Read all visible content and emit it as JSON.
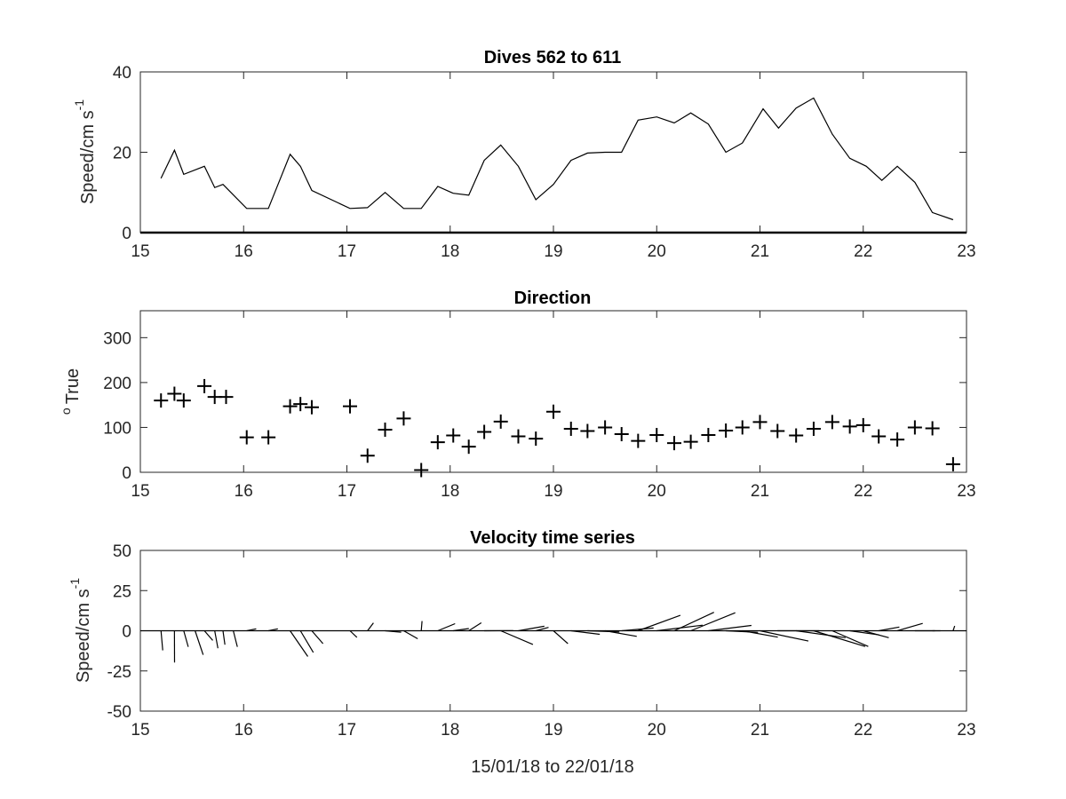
{
  "colors": {
    "line": "#000000",
    "axis": "#262626",
    "background": "#ffffff"
  },
  "chart_data": [
    {
      "type": "line",
      "title": "Dives 562 to 611",
      "ylabel": "Speed/cm s",
      "ylabel_superscript": "-1",
      "xlim": [
        15,
        23
      ],
      "ylim": [
        0,
        40
      ],
      "xticks": [
        "15",
        "16",
        "17",
        "18",
        "19",
        "20",
        "21",
        "22",
        "23"
      ],
      "yticks": [
        "0",
        "20",
        "40"
      ],
      "grid": false,
      "x": [
        15.2,
        15.33,
        15.42,
        15.62,
        15.72,
        15.8,
        16.03,
        16.24,
        16.45,
        16.55,
        16.66,
        17.03,
        17.2,
        17.37,
        17.55,
        17.72,
        17.88,
        18.03,
        18.18,
        18.33,
        18.49,
        18.66,
        18.83,
        19.0,
        19.17,
        19.33,
        19.5,
        19.66,
        19.82,
        20.0,
        20.17,
        20.33,
        20.5,
        20.67,
        20.83,
        21.03,
        21.18,
        21.35,
        21.52,
        21.7,
        21.87,
        22.03,
        22.18,
        22.33,
        22.5,
        22.67,
        22.87
      ],
      "values": [
        13.5,
        20.5,
        14.5,
        16.5,
        11.2,
        12.0,
        6.0,
        6.0,
        19.5,
        16.5,
        10.5,
        6.0,
        6.2,
        10.0,
        6.0,
        6.0,
        11.5,
        9.8,
        9.3,
        18.0,
        21.8,
        16.5,
        8.2,
        12.0,
        18.0,
        19.8,
        20.0,
        20.0,
        28.0,
        28.8,
        27.3,
        29.8,
        27.0,
        20.0,
        22.3,
        30.8,
        26.0,
        31.0,
        33.5,
        24.5,
        18.5,
        16.5,
        13.0,
        16.5,
        12.5,
        5.0,
        3.2
      ]
    },
    {
      "type": "scatter",
      "title": "Direction",
      "ylabel": "True",
      "ylabel_prefix": "o",
      "xlim": [
        15,
        23
      ],
      "ylim": [
        0,
        360
      ],
      "xticks": [
        "15",
        "16",
        "17",
        "18",
        "19",
        "20",
        "21",
        "22",
        "23"
      ],
      "yticks": [
        "0",
        "100",
        "200",
        "300"
      ],
      "marker": "+",
      "grid": false,
      "x": [
        15.2,
        15.33,
        15.42,
        15.62,
        15.72,
        15.83,
        16.03,
        16.24,
        16.45,
        16.55,
        16.66,
        17.03,
        17.2,
        17.37,
        17.55,
        17.72,
        17.88,
        18.03,
        18.18,
        18.33,
        18.49,
        18.66,
        18.83,
        19.0,
        19.17,
        19.33,
        19.5,
        19.66,
        19.82,
        20.0,
        20.17,
        20.33,
        20.5,
        20.67,
        20.83,
        21.0,
        21.17,
        21.35,
        21.52,
        21.7,
        21.87,
        22.0,
        22.15,
        22.33,
        22.5,
        22.67,
        22.87
      ],
      "values": [
        160,
        175,
        160,
        192,
        168,
        168,
        78,
        78,
        147,
        152,
        145,
        147,
        37,
        95,
        120,
        5,
        67,
        82,
        57,
        90,
        113,
        80,
        75,
        135,
        97,
        92,
        100,
        85,
        70,
        83,
        65,
        68,
        83,
        93,
        100,
        112,
        92,
        82,
        97,
        112,
        102,
        105,
        80,
        73,
        100,
        98,
        18
      ]
    },
    {
      "type": "line",
      "subtype": "stick (feather) plot",
      "title": "Velocity time series",
      "ylabel": "Speed/cm s",
      "ylabel_superscript": "-1",
      "xlabel": "15/01/18 to 22/01/18",
      "xlim": [
        15,
        23
      ],
      "ylim": [
        -50,
        50
      ],
      "xticks": [
        "15",
        "16",
        "17",
        "18",
        "19",
        "20",
        "21",
        "22",
        "23"
      ],
      "yticks": [
        "-50",
        "-25",
        "0",
        "25",
        "50"
      ],
      "grid": false,
      "sticks": [
        {
          "x": 15.2,
          "u": 1.1,
          "v": -12.2
        },
        {
          "x": 15.33,
          "u": 0.1,
          "v": -19.8
        },
        {
          "x": 15.42,
          "u": 2.8,
          "v": -10.0
        },
        {
          "x": 15.53,
          "u": 5.0,
          "v": -15.0
        },
        {
          "x": 15.62,
          "u": 5.2,
          "v": -6.0
        },
        {
          "x": 15.72,
          "u": 2.0,
          "v": -10.9
        },
        {
          "x": 15.8,
          "u": 1.2,
          "v": -8.7
        },
        {
          "x": 15.9,
          "u": 2.5,
          "v": -10.0
        },
        {
          "x": 16.03,
          "u": 5.9,
          "v": 1.2
        },
        {
          "x": 16.24,
          "u": 5.9,
          "v": 1.2
        },
        {
          "x": 16.45,
          "u": 11.0,
          "v": -16.0
        },
        {
          "x": 16.55,
          "u": 8.0,
          "v": -13.5
        },
        {
          "x": 16.66,
          "u": 7.0,
          "v": -8.0
        },
        {
          "x": 17.03,
          "u": 4.3,
          "v": -4.1
        },
        {
          "x": 17.2,
          "u": 3.7,
          "v": 4.9
        },
        {
          "x": 17.37,
          "u": 10.0,
          "v": -0.9
        },
        {
          "x": 17.55,
          "u": 8.7,
          "v": -5.0
        },
        {
          "x": 17.72,
          "u": 0.5,
          "v": 6.0
        },
        {
          "x": 17.88,
          "u": 10.8,
          "v": 4.4
        },
        {
          "x": 18.03,
          "u": 9.7,
          "v": 1.4
        },
        {
          "x": 18.18,
          "u": 7.8,
          "v": 5.0
        },
        {
          "x": 18.33,
          "u": 18.0,
          "v": 0.1
        },
        {
          "x": 18.49,
          "u": 20.0,
          "v": -8.5
        },
        {
          "x": 18.66,
          "u": 16.2,
          "v": 2.8
        },
        {
          "x": 18.83,
          "u": 7.9,
          "v": 2.1
        },
        {
          "x": 19.0,
          "u": 9.0,
          "v": -8.0
        },
        {
          "x": 19.17,
          "u": 17.9,
          "v": -2.2
        },
        {
          "x": 19.33,
          "u": 19.8,
          "v": -0.7
        },
        {
          "x": 19.5,
          "u": 19.7,
          "v": -3.5
        },
        {
          "x": 19.66,
          "u": 19.9,
          "v": 1.7
        },
        {
          "x": 19.82,
          "u": 26.3,
          "v": 9.6
        },
        {
          "x": 20.0,
          "u": 28.6,
          "v": 3.5
        },
        {
          "x": 20.17,
          "u": 24.7,
          "v": 11.5
        },
        {
          "x": 20.33,
          "u": 27.7,
          "v": 11.2
        },
        {
          "x": 20.5,
          "u": 26.8,
          "v": 3.3
        },
        {
          "x": 20.67,
          "u": 20.0,
          "v": -1.0
        },
        {
          "x": 20.83,
          "u": 22.0,
          "v": -4.0
        },
        {
          "x": 21.0,
          "u": 30.1,
          "v": -6.4
        },
        {
          "x": 21.17,
          "u": 26.0,
          "v": 0.0
        },
        {
          "x": 21.35,
          "u": 30.7,
          "v": -4.3
        },
        {
          "x": 21.52,
          "u": 32.0,
          "v": -9.8
        },
        {
          "x": 21.7,
          "u": 22.4,
          "v": -9.8
        },
        {
          "x": 21.87,
          "u": 18.3,
          "v": -2.6
        },
        {
          "x": 22.0,
          "u": 15.9,
          "v": -4.3
        },
        {
          "x": 22.15,
          "u": 12.8,
          "v": 2.3
        },
        {
          "x": 22.33,
          "u": 15.8,
          "v": 4.6
        },
        {
          "x": 22.5,
          "u": 12.5,
          "v": 0.0
        },
        {
          "x": 22.67,
          "u": 5.0,
          "v": 0.0
        },
        {
          "x": 22.87,
          "u": 1.0,
          "v": 3.0
        }
      ]
    }
  ]
}
